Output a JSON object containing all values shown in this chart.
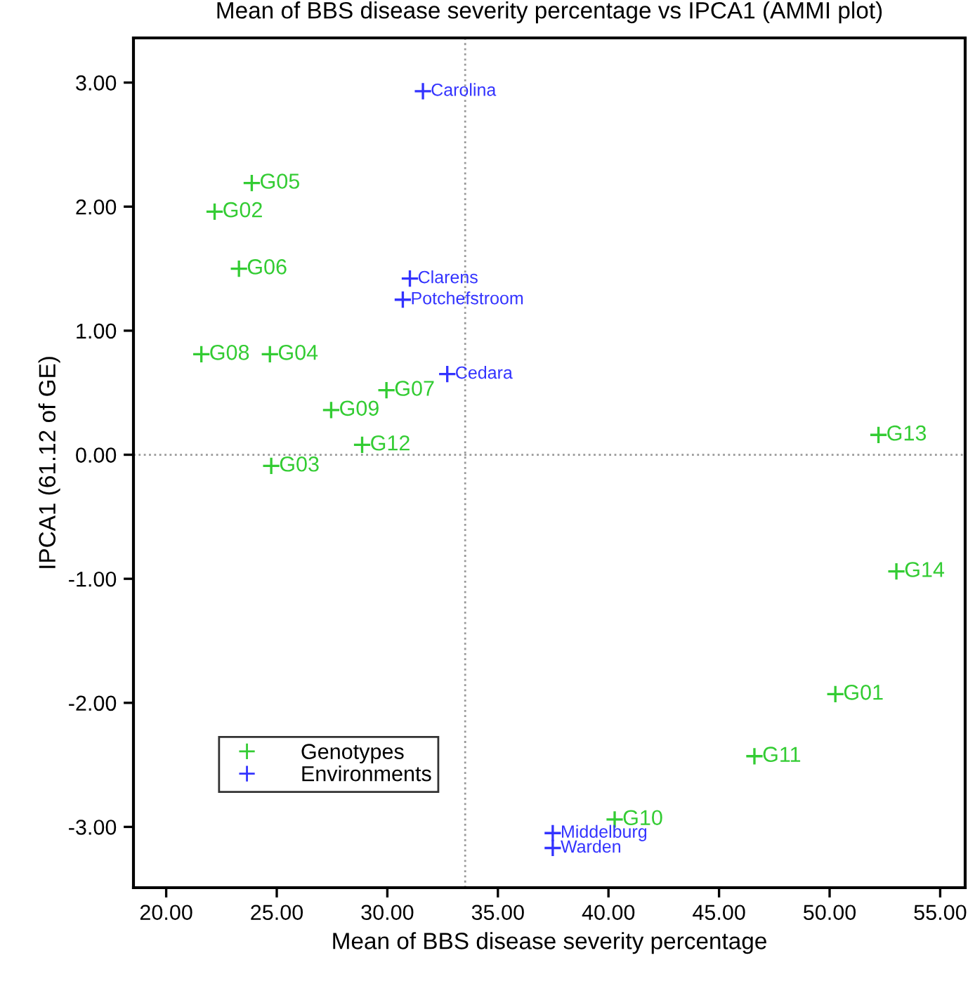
{
  "chart_data": {
    "type": "scatter",
    "title": "Mean of BBS disease severity percentage vs IPCA1 (AMMI plot)",
    "xlabel": "Mean of BBS disease severity percentage",
    "ylabel": "IPCA1 (61.12 of GE)",
    "xlim": [
      18.52,
      56.13
    ],
    "ylim": [
      -3.49,
      3.36
    ],
    "xticks": [
      {
        "value": 20,
        "label": "20.00"
      },
      {
        "value": 25,
        "label": "25.00"
      },
      {
        "value": 30,
        "label": "30.00"
      },
      {
        "value": 35,
        "label": "35.00"
      },
      {
        "value": 40,
        "label": "40.00"
      },
      {
        "value": 45,
        "label": "45.00"
      },
      {
        "value": 50,
        "label": "50.00"
      },
      {
        "value": 55,
        "label": "55.00"
      }
    ],
    "yticks": [
      {
        "value": -3,
        "label": "-3.00"
      },
      {
        "value": -2,
        "label": "-2.00"
      },
      {
        "value": -1,
        "label": "-1.00"
      },
      {
        "value": 0,
        "label": "0.00"
      },
      {
        "value": 1,
        "label": "1.00"
      },
      {
        "value": 2,
        "label": "2.00"
      },
      {
        "value": 3,
        "label": "3.00"
      }
    ],
    "marker": "cross",
    "legend": "bottom left",
    "grid": false,
    "series": [
      {
        "name": "Genotypes",
        "color": "#33cc33",
        "x": [
          23.87,
          22.19,
          23.29,
          21.59,
          24.69,
          29.96,
          27.46,
          28.86,
          24.75,
          52.21,
          53.02,
          50.26,
          46.6,
          40.28
        ],
        "values": [
          2.19,
          1.96,
          1.5,
          0.81,
          0.81,
          0.52,
          0.36,
          0.08,
          -0.09,
          0.16,
          -0.94,
          -1.93,
          -2.43,
          -2.94
        ]
      },
      {
        "name": "Environments",
        "color": "#3333ff",
        "x": [
          31.61,
          31.02,
          30.7,
          32.71,
          37.48,
          37.48
        ],
        "values": [
          2.93,
          1.42,
          1.25,
          0.65,
          -3.05,
          -3.17
        ]
      }
    ],
    "ref_lines": [
      {
        "axis": "x",
        "value": 33.52,
        "color": "#999999",
        "line_style": "dotted"
      },
      {
        "axis": "y",
        "value": 0,
        "color": "#999999",
        "line_style": "dotted"
      }
    ],
    "annotations": [
      {
        "text": "G05",
        "x": 23.87,
        "y": 2.19
      },
      {
        "text": "G02",
        "x": 22.19,
        "y": 1.96
      },
      {
        "text": "G06",
        "x": 23.29,
        "y": 1.5
      },
      {
        "text": "G08",
        "x": 21.59,
        "y": 0.81
      },
      {
        "text": "G04",
        "x": 24.69,
        "y": 0.81
      },
      {
        "text": "G07",
        "x": 29.96,
        "y": 0.52
      },
      {
        "text": "G09",
        "x": 27.46,
        "y": 0.36
      },
      {
        "text": "G12",
        "x": 28.86,
        "y": 0.08
      },
      {
        "text": "G03",
        "x": 24.75,
        "y": -0.09
      },
      {
        "text": "G13",
        "x": 52.21,
        "y": 0.16
      },
      {
        "text": "G14",
        "x": 53.02,
        "y": -0.94
      },
      {
        "text": "G01",
        "x": 50.26,
        "y": -1.93
      },
      {
        "text": "G11",
        "x": 46.6,
        "y": -2.43
      },
      {
        "text": "G10",
        "x": 40.28,
        "y": -2.94
      },
      {
        "text": "Carolina",
        "x": 31.61,
        "y": 2.93
      },
      {
        "text": "Clarens",
        "x": 31.02,
        "y": 1.42
      },
      {
        "text": "Potchefstroom",
        "x": 30.7,
        "y": 1.25
      },
      {
        "text": "Cedara",
        "x": 32.71,
        "y": 0.65
      },
      {
        "text": "Middelburg",
        "x": 37.48,
        "y": -3.05
      },
      {
        "text": "Warden",
        "x": 37.48,
        "y": -3.17
      }
    ]
  }
}
